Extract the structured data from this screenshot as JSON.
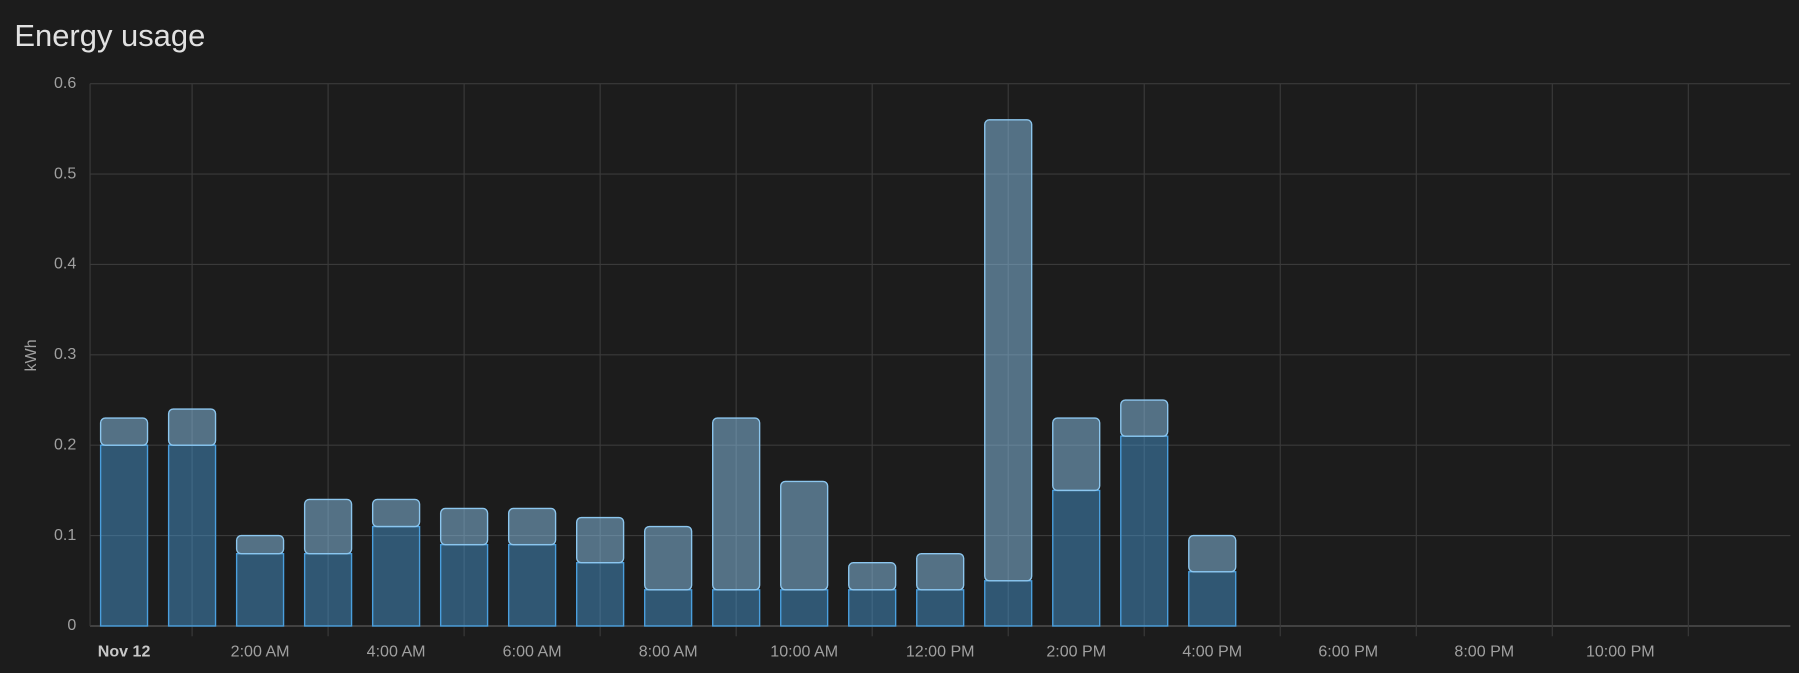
{
  "chart_data": {
    "type": "stacked_bar",
    "title": "Energy usage",
    "y_label": "kWh",
    "x": [
      0,
      1,
      2,
      3,
      4,
      5,
      6,
      7,
      8,
      9,
      10,
      11,
      12,
      13,
      14,
      15,
      16
    ],
    "series": [
      {
        "color": "#4a9fde",
        "values": [
          0.2,
          0.2,
          0.08,
          0.08,
          0.11,
          0.09,
          0.09,
          0.07,
          0.04,
          0.04,
          0.04,
          0.04,
          0.04,
          0.05,
          0.15,
          0.21,
          0.06
        ]
      },
      {
        "color": "#8cc6ee",
        "values": [
          0.03,
          0.04,
          0.02,
          0.06,
          0.03,
          0.04,
          0.04,
          0.05,
          0.07,
          0.19,
          0.12,
          0.03,
          0.04,
          0.51,
          0.08,
          0.04,
          0.04
        ]
      }
    ],
    "xlim": [
      -0.5,
      24.5
    ],
    "xticks": [
      {
        "value": 0,
        "label": "Nov 12"
      },
      {
        "value": 2,
        "label": "2:00 AM"
      },
      {
        "value": 4,
        "label": "4:00 AM"
      },
      {
        "value": 6,
        "label": "6:00 AM"
      },
      {
        "value": 8,
        "label": "8:00 AM"
      },
      {
        "value": 10,
        "label": "10:00 AM"
      },
      {
        "value": 12,
        "label": "12:00 PM"
      },
      {
        "value": 14,
        "label": "2:00 PM"
      },
      {
        "value": 16,
        "label": "4:00 PM"
      },
      {
        "value": 18,
        "label": "6:00 PM"
      },
      {
        "value": 20,
        "label": "8:00 PM"
      },
      {
        "value": 22,
        "label": "10:00 PM"
      }
    ],
    "ylim": [
      0,
      0.6
    ],
    "yticks": [
      0,
      0.1,
      0.2,
      0.3,
      0.4,
      0.5,
      0.6
    ],
    "grid": true
  }
}
